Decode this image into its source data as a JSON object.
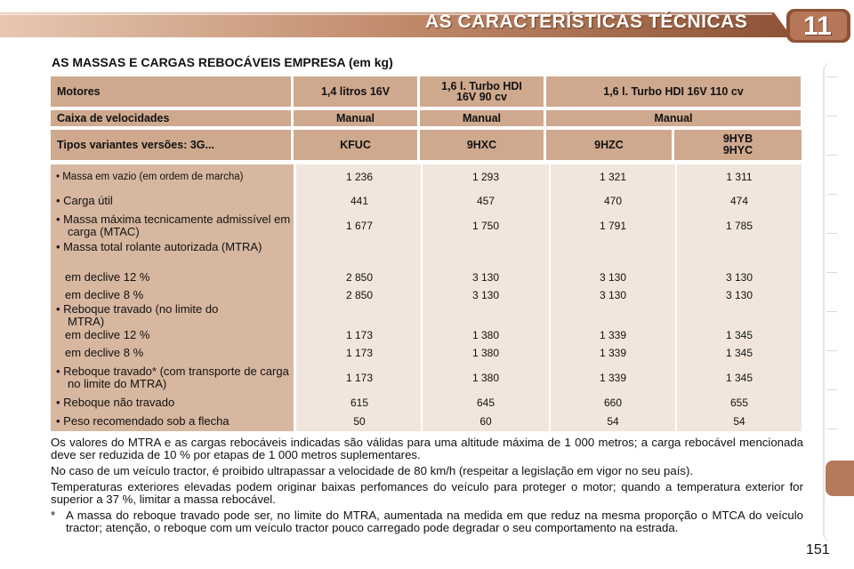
{
  "header": {
    "title": "AS CARACTERÍSTICAS TÉCNICAS",
    "chapter": "11"
  },
  "section_title": "AS MASSAS E CARGAS REBOCÁVEIS EMPRESA (em kg)",
  "table": {
    "motores": {
      "label": "Motores",
      "c1": "1,4 litros 16V",
      "c2": "1,6 l. Turbo HDI 16V 90 cv",
      "c34": "1,6 l. Turbo HDI 16V 110 cv"
    },
    "caixa": {
      "label": "Caixa de velocidades",
      "c1": "Manual",
      "c2": "Manual",
      "c34": "Manual"
    },
    "tipos": {
      "label": "Tipos variantes versões: 3G...",
      "c1": "KFUC",
      "c2": "9HXC",
      "c3": "9HZC",
      "c4_line1": "9HYB",
      "c4_line2": "9HYC"
    },
    "rows": [
      {
        "label": "• Massa em vazio (em ordem de marcha)",
        "values": [
          "1 236",
          "1 293",
          "1 321",
          "1 311"
        ]
      },
      {
        "label": "• Carga útil",
        "values": [
          "441",
          "457",
          "470",
          "474"
        ]
      },
      {
        "label": "• Massa máxima tecnicamente admissível em carga (MTAC)",
        "values": [
          "1 677",
          "1 750",
          "1 791",
          "1 785"
        ]
      },
      {
        "label": "• Massa total rolante autorizada (MTRA)",
        "values": [
          "",
          "",
          "",
          ""
        ]
      },
      {
        "label": "em declive 12 %",
        "values": [
          "2 850",
          "3 130",
          "3 130",
          "3 130"
        ]
      },
      {
        "label": "em declive 8 %",
        "values": [
          "2 850",
          "3 130",
          "3 130",
          "3 130"
        ]
      },
      {
        "label": "• Reboque travado (no limite do MTRA)",
        "values": [
          "",
          "",
          "",
          ""
        ]
      },
      {
        "label": "em declive 12 %",
        "values": [
          "1 173",
          "1 380",
          "1 339",
          "1 345"
        ]
      },
      {
        "label": "em declive 8 %",
        "values": [
          "1 173",
          "1 380",
          "1 339",
          "1 345"
        ]
      },
      {
        "label": "• Reboque travado* (com transporte de carga no limite do MTRA)",
        "values": [
          "1 173",
          "1 380",
          "1 339",
          "1 345"
        ]
      },
      {
        "label": "• Reboque não travado",
        "values": [
          "615",
          "645",
          "660",
          "655"
        ]
      },
      {
        "label": "• Peso recomendado sob a flecha",
        "values": [
          "50",
          "60",
          "54",
          "54"
        ]
      }
    ]
  },
  "notes": [
    "Os valores do MTRA e as cargas rebocáveis indicadas são válidas para uma altitude máxima de 1 000 metros; a carga rebocável mencionada deve ser reduzida de 10 % por etapas de 1 000 metros suplementares.",
    "No caso de um veículo tractor, é proibido ultrapassar a velocidade de 80 km/h (respeitar a legislação em vigor no seu país).",
    "Temperaturas exteriores elevadas podem originar baixas perfomances do veículo para proteger o motor; quando a temperatura exterior for superior a 37 %, limitar a massa rebocável."
  ],
  "footnote": {
    "symbol": "*",
    "text": "A massa do reboque travado pode ser, no limite do MTRA, aumentada na medida em que reduz na mesma proporção o MTCA do veículo tractor; atenção, o reboque com um veículo tractor pouco carregado pode degradar o seu comportamento na estrada."
  },
  "page_number": "151",
  "colors": {
    "header_brown": "#a8694a",
    "table_header": "#cfa98e",
    "label_column": "#d7b7a0",
    "value_cells": "#f2e6dc"
  }
}
